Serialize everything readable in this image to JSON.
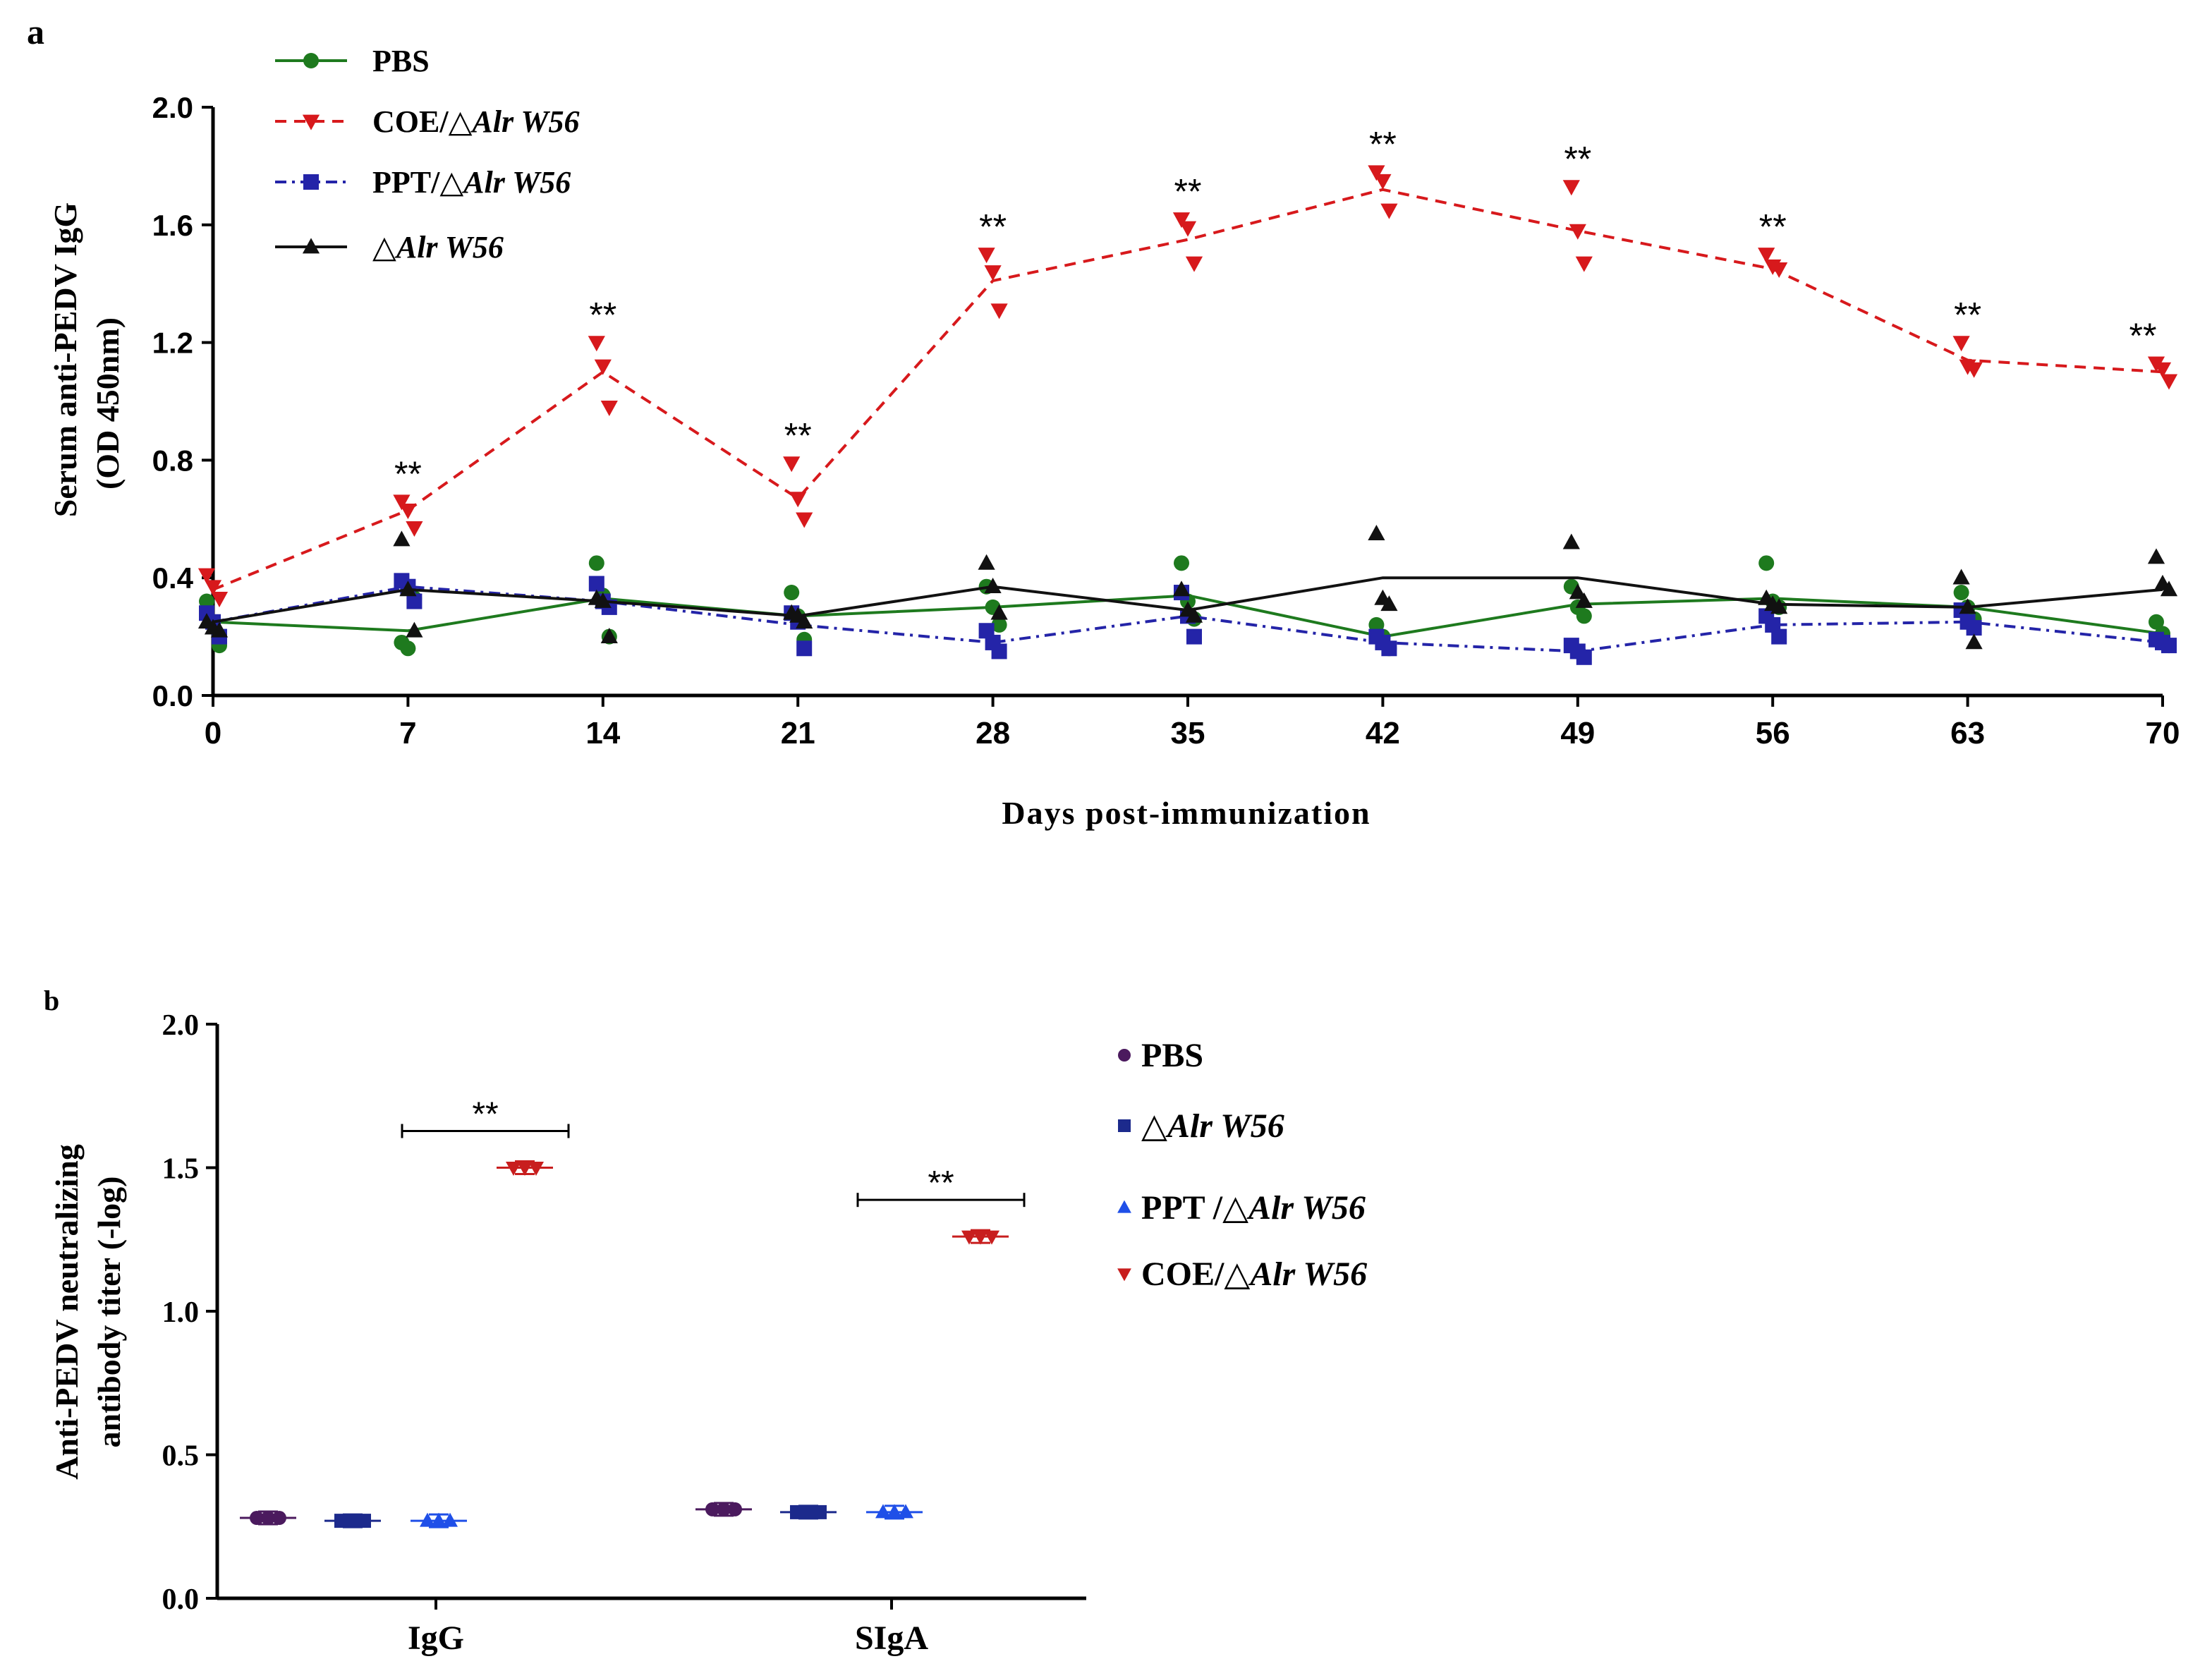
{
  "chart_data": [
    {
      "panel_label": "a",
      "type": "line",
      "ylabel_line1": "Serum anti-PEDV IgG",
      "ylabel_line2": "(OD 450nm)",
      "xlabel": "Days post-immunization",
      "x": [
        0,
        7,
        14,
        21,
        28,
        35,
        42,
        49,
        56,
        63,
        70
      ],
      "x_tick_labels": [
        "0",
        "7",
        "14",
        "21",
        "28",
        "35",
        "42",
        "49",
        "56",
        "63",
        "70"
      ],
      "ylim": [
        0,
        2.0
      ],
      "y_ticks": [
        0.0,
        0.4,
        0.8,
        1.2,
        1.6,
        2.0
      ],
      "y_tick_labels": [
        "0.0",
        "0.4",
        "0.8",
        "1.2",
        "1.6",
        "2.0"
      ],
      "legend_position": "top-left",
      "series": [
        {
          "name": "PBS",
          "legend_prefix": "PBS",
          "legend_italic": "",
          "color": "#1e7a1e",
          "marker": "circle",
          "line": "solid",
          "values": [
            0.25,
            0.22,
            0.33,
            0.27,
            0.3,
            0.34,
            0.2,
            0.31,
            0.33,
            0.3,
            0.21
          ],
          "points": [
            [
              0.32,
              0.25,
              0.17
            ],
            [
              0.18,
              0.16,
              0.33
            ],
            [
              0.45,
              0.34,
              0.2
            ],
            [
              0.35,
              0.27,
              0.19
            ],
            [
              0.37,
              0.3,
              0.24
            ],
            [
              0.45,
              0.32,
              0.26
            ],
            [
              0.24,
              0.2,
              0.16
            ],
            [
              0.37,
              0.3,
              0.27
            ],
            [
              0.45,
              0.32,
              0.3
            ],
            [
              0.35,
              0.3,
              0.26
            ],
            [
              0.25,
              0.21,
              0.17
            ]
          ]
        },
        {
          "name": "COE/△Alr W56",
          "legend_prefix": "COE/△",
          "legend_italic": "Alr W56",
          "color": "#d7191c",
          "marker": "triangle-down",
          "line": "dashed",
          "values": [
            0.36,
            0.63,
            1.1,
            0.67,
            1.41,
            1.55,
            1.72,
            1.58,
            1.45,
            1.14,
            1.1
          ],
          "points": [
            [
              0.41,
              0.37,
              0.33
            ],
            [
              0.66,
              0.63,
              0.57
            ],
            [
              1.2,
              1.12,
              0.98
            ],
            [
              0.79,
              0.67,
              0.6
            ],
            [
              1.5,
              1.44,
              1.31
            ],
            [
              1.62,
              1.59,
              1.47
            ],
            [
              1.78,
              1.75,
              1.65
            ],
            [
              1.73,
              1.58,
              1.47
            ],
            [
              1.5,
              1.46,
              1.45
            ],
            [
              1.2,
              1.12,
              1.11
            ],
            [
              1.13,
              1.11,
              1.07
            ]
          ],
          "significance": [
            "",
            "**",
            "**",
            "**",
            "**",
            "**",
            "**",
            "**",
            "**",
            "**",
            "**"
          ]
        },
        {
          "name": "PPT/△Alr W56",
          "legend_prefix": "PPT/△",
          "legend_italic": "Alr W56",
          "color": "#2424a8",
          "marker": "square",
          "line": "dash-dot",
          "values": [
            0.25,
            0.37,
            0.32,
            0.24,
            0.18,
            0.27,
            0.18,
            0.15,
            0.24,
            0.25,
            0.18
          ],
          "points": [
            [
              0.28,
              0.25,
              0.2
            ],
            [
              0.39,
              0.37,
              0.32
            ],
            [
              0.38,
              0.32,
              0.3
            ],
            [
              0.28,
              0.25,
              0.16
            ],
            [
              0.22,
              0.18,
              0.15
            ],
            [
              0.35,
              0.27,
              0.2
            ],
            [
              0.2,
              0.18,
              0.16
            ],
            [
              0.17,
              0.15,
              0.13
            ],
            [
              0.27,
              0.24,
              0.2
            ],
            [
              0.29,
              0.25,
              0.23
            ],
            [
              0.19,
              0.18,
              0.17
            ]
          ]
        },
        {
          "name": "△Alr W56",
          "legend_prefix": "△",
          "legend_italic": "Alr W56",
          "color": "#111111",
          "marker": "triangle-up",
          "line": "solid",
          "values": [
            0.25,
            0.36,
            0.32,
            0.27,
            0.37,
            0.29,
            0.4,
            0.4,
            0.31,
            0.3,
            0.36
          ],
          "points": [
            [
              0.25,
              0.23,
              0.22
            ],
            [
              0.53,
              0.36,
              0.22
            ],
            [
              0.33,
              0.32,
              0.2
            ],
            [
              0.28,
              0.27,
              0.25
            ],
            [
              0.45,
              0.37,
              0.28
            ],
            [
              0.36,
              0.29,
              0.27
            ],
            [
              0.55,
              0.33,
              0.31
            ],
            [
              0.52,
              0.35,
              0.32
            ],
            [
              0.33,
              0.31,
              0.3
            ],
            [
              0.4,
              0.3,
              0.18
            ],
            [
              0.47,
              0.38,
              0.36
            ]
          ]
        }
      ]
    },
    {
      "panel_label": "b",
      "type": "scatter",
      "ylabel_line1": "Anti-PEDV neutralizing",
      "ylabel_line2": "antibody titer (-log)",
      "categories": [
        "IgG",
        "SIgA"
      ],
      "ylim": [
        0,
        2.0
      ],
      "y_ticks": [
        0.0,
        0.5,
        1.0,
        1.5,
        2.0
      ],
      "y_tick_labels": [
        "0.0",
        "0.5",
        "1.0",
        "1.5",
        "2.0"
      ],
      "legend_position": "right",
      "significance_label": "**",
      "series": [
        {
          "name": "PBS",
          "legend_prefix": "PBS",
          "legend_italic": "",
          "color": "#4b1a5e",
          "marker": "circle",
          "values": [
            0.28,
            0.31
          ]
        },
        {
          "name": "△Alr W56",
          "legend_prefix": "△",
          "legend_italic": "Alr W56",
          "color": "#1c2a8c",
          "marker": "square",
          "values": [
            0.27,
            0.3
          ]
        },
        {
          "name": "PPT /△Alr W56",
          "legend_prefix": "PPT /△",
          "legend_italic": "Alr W56",
          "color": "#1f4fe8",
          "marker": "triangle-up",
          "values": [
            0.27,
            0.3
          ]
        },
        {
          "name": "COE/△Alr W56",
          "legend_prefix": "COE/△",
          "legend_italic": "Alr W56",
          "color": "#c81e1e",
          "marker": "triangle-down",
          "values": [
            1.5,
            1.26
          ]
        }
      ]
    }
  ]
}
